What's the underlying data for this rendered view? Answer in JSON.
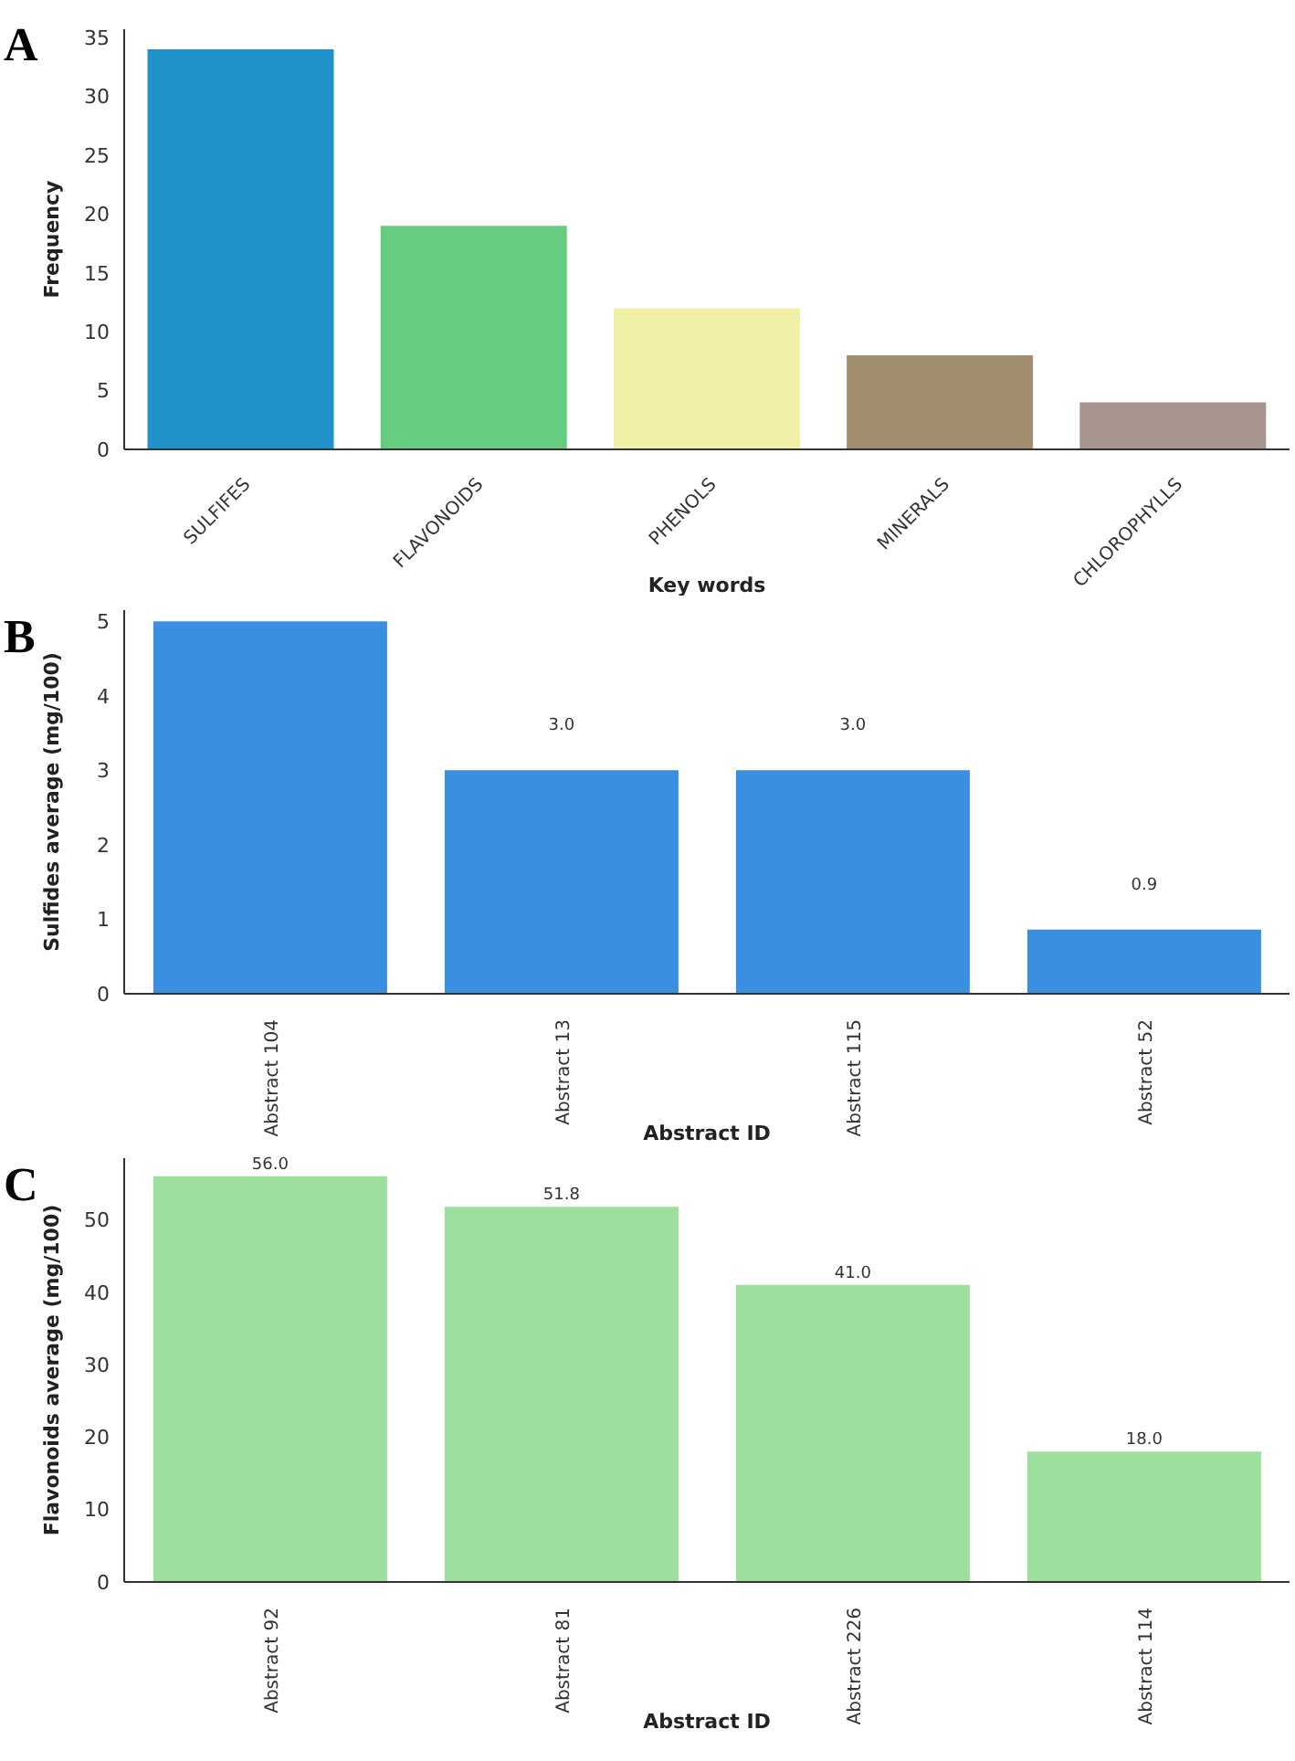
{
  "chart_data": [
    {
      "type": "bar",
      "annotations": [
        "A"
      ],
      "xlabel": "Key words",
      "ylabel": "Frequency",
      "categories": [
        "SULFIFES",
        "FLAVONOIDS",
        "PHENOLS",
        "MINERALS",
        "CHLOROPHYLLS"
      ],
      "values": [
        34,
        19,
        12,
        8,
        4
      ],
      "colors": [
        "#1f93c9",
        "#66cc7f",
        "#f0f0a6",
        "#a08e6f",
        "#a89590"
      ],
      "ylim": [
        0,
        35.7
      ],
      "yticks": [
        0,
        5,
        10,
        15,
        20,
        25,
        30,
        35
      ],
      "grid": false
    },
    {
      "type": "bar",
      "annotations": [
        "B"
      ],
      "xlabel": "Abstract ID",
      "ylabel": "Sulfides average (mg/100)",
      "categories": [
        "Abstract 104",
        "Abstract 13",
        "Abstract 115",
        "Abstract 52"
      ],
      "values": [
        5,
        3,
        3,
        0.86
      ],
      "value_labels": [
        null,
        "3.0",
        "3.0",
        "0.9"
      ],
      "color": "#3a8fe0",
      "ylim": [
        0,
        5.15
      ],
      "yticks": [
        0,
        1,
        2,
        3,
        4,
        5
      ],
      "grid": false
    },
    {
      "type": "bar",
      "annotations": [
        "C"
      ],
      "xlabel": "Abstract ID",
      "ylabel": "Flavonoids average (mg/100)",
      "categories": [
        "Abstract 92",
        "Abstract 81",
        "Abstract 226",
        "Abstract 114"
      ],
      "values": [
        56,
        51.8,
        41,
        18
      ],
      "value_labels": [
        "56.0",
        "51.8",
        "41.0",
        "18.0"
      ],
      "color": "#9de09d",
      "ylim": [
        0,
        58.5
      ],
      "yticks": [
        0,
        10,
        20,
        30,
        40,
        50
      ],
      "grid": false
    }
  ]
}
